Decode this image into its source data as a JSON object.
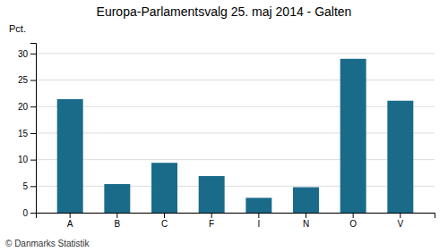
{
  "chart_data": {
    "type": "bar",
    "title": "Europa-Parlamentsvalg 25. maj 2014 - Galten",
    "categories": [
      "A",
      "B",
      "C",
      "F",
      "I",
      "N",
      "O",
      "V"
    ],
    "values": [
      21.4,
      5.4,
      9.4,
      6.9,
      2.8,
      4.8,
      29.0,
      21.1
    ],
    "color": "#1a6b8a",
    "ylabel": "Pct.",
    "annotations": [
      "© Danmarks Statistik"
    ],
    "ylim": [
      0,
      32
    ],
    "yticks": [
      0,
      5,
      10,
      15,
      20,
      25,
      30
    ],
    "grid": true
  }
}
